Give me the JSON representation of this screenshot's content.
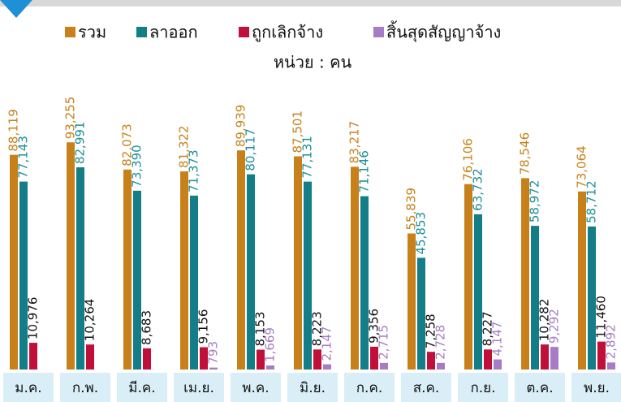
{
  "chart_data": {
    "type": "bar",
    "subtitle": "หน่วย : คน",
    "categories": [
      "ม.ค.",
      "ก.พ.",
      "มี.ค.",
      "เม.ย.",
      "พ.ค.",
      "มิ.ย.",
      "ก.ค.",
      "ส.ค.",
      "ก.ย.",
      "ต.ค.",
      "พ.ย."
    ],
    "series": [
      {
        "name": "รวม",
        "color": "#c8811a",
        "label_color": "#c8811a",
        "values": [
          88119,
          93255,
          82073,
          81322,
          89939,
          87501,
          83217,
          55839,
          76106,
          78546,
          73064
        ],
        "value_labels": [
          "88,119",
          "93,255",
          "82,073",
          "81,322",
          "89,939",
          "87,501",
          "83,217",
          "55,839",
          "76,106",
          "78,546",
          "73,064"
        ]
      },
      {
        "name": "ลาออก",
        "color": "#137e87",
        "label_color": "#1a8f97",
        "values": [
          77143,
          82991,
          73390,
          71373,
          80117,
          77131,
          71146,
          45853,
          63732,
          58972,
          58712
        ],
        "value_labels": [
          "77,143",
          "82,991",
          "73,390",
          "71,373",
          "80,117",
          "77,131",
          "71,146",
          "45,853",
          "63,732",
          "58,972",
          "58,712"
        ]
      },
      {
        "name": "ถูกเลิกจ้าง",
        "color": "#c0103a",
        "label_color": "#111111",
        "values": [
          10976,
          10264,
          8683,
          9156,
          8153,
          8223,
          9356,
          7258,
          8227,
          10282,
          11460
        ],
        "value_labels": [
          "10,976",
          "10,264",
          "8,683",
          "9,156",
          "8,153",
          "8,223",
          "9,356",
          "7,258",
          "8,227",
          "10,282",
          "11,460"
        ]
      },
      {
        "name": "สิ้นสุดสัญญาจ้าง",
        "color": "#a77cc4",
        "label_color": "#a77cc4",
        "values": [
          null,
          null,
          null,
          793,
          1669,
          2147,
          2715,
          2728,
          4147,
          9292,
          2892
        ],
        "value_labels": [
          null,
          null,
          null,
          "793",
          "1,669",
          "2,147",
          "2,715",
          "2,728",
          "4,147",
          "9,292",
          "2,892"
        ]
      }
    ],
    "ylim": [
      0,
      100000
    ]
  }
}
